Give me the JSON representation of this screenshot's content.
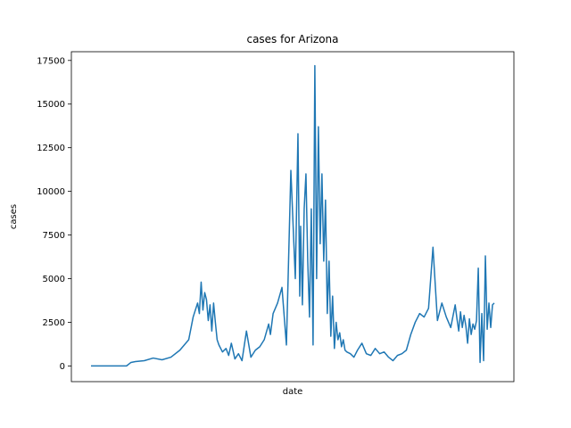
{
  "chart_data": {
    "type": "line",
    "title": "cases for Arizona",
    "xlabel": "date",
    "ylabel": "cases",
    "ylim": [
      -900,
      18000
    ],
    "yticks": [
      0,
      2500,
      5000,
      7500,
      10000,
      12500,
      15000,
      17500
    ],
    "ytick_labels": [
      "0",
      "2500",
      "5000",
      "7500",
      "10000",
      "12500",
      "15000",
      "17500"
    ],
    "xticks_visible": false,
    "grid": false,
    "color": "#1f77b4",
    "series": [
      {
        "index": [
          0,
          20,
          36,
          40,
          45,
          50,
          60,
          70,
          80,
          90,
          100,
          110,
          115,
          120,
          122,
          124,
          126,
          128,
          130,
          132,
          134,
          136,
          138,
          140,
          142,
          144,
          148,
          152,
          155,
          158,
          162,
          166,
          170,
          175,
          180,
          185,
          190,
          195,
          200,
          202,
          205,
          210,
          215,
          220,
          225,
          230,
          233,
          235,
          236,
          238,
          240,
          242,
          244,
          246,
          248,
          250,
          252,
          254,
          256,
          258,
          260,
          262,
          264,
          266,
          268,
          270,
          272,
          274,
          276,
          278,
          280,
          282,
          284,
          286,
          288,
          292,
          296,
          300,
          305,
          310,
          315,
          320,
          325,
          330,
          335,
          340,
          345,
          350,
          355,
          360,
          365,
          370,
          375,
          380,
          385,
          390,
          395,
          400,
          405,
          410,
          412,
          414,
          416,
          418,
          420,
          422,
          424,
          426,
          428,
          430,
          432,
          434,
          436,
          438,
          440,
          442,
          444,
          446,
          448,
          450,
          452,
          454
        ],
        "values": [
          0,
          0,
          0,
          0,
          200,
          250,
          300,
          450,
          350,
          500,
          900,
          1500,
          2800,
          3600,
          3000,
          4800,
          3200,
          4200,
          3800,
          2600,
          3500,
          2000,
          3600,
          2500,
          1500,
          1200,
          800,
          1000,
          600,
          1300,
          400,
          700,
          300,
          2000,
          500,
          900,
          1100,
          1500,
          2400,
          1800,
          3000,
          3600,
          4500,
          1200,
          11200,
          5000,
          13300,
          4000,
          8000,
          3500,
          9000,
          11000,
          6000,
          2800,
          9000,
          1200,
          17200,
          5000,
          13700,
          7000,
          11000,
          6000,
          9500,
          3000,
          6000,
          1700,
          4000,
          1000,
          2500,
          1500,
          1900,
          1100,
          1500,
          900,
          800,
          700,
          500,
          900,
          1300,
          700,
          600,
          1000,
          700,
          800,
          500,
          300,
          600,
          700,
          900,
          1800,
          2500,
          3000,
          2800,
          3300,
          6800,
          2600,
          3600,
          2800,
          2200,
          3500,
          2700,
          2000,
          3100,
          2200,
          2900,
          2300,
          1300,
          2700,
          1800,
          2400,
          2100,
          2600,
          5600,
          200,
          3000,
          300,
          6300,
          2100,
          3600,
          2200,
          3500,
          3600
        ]
      }
    ]
  }
}
